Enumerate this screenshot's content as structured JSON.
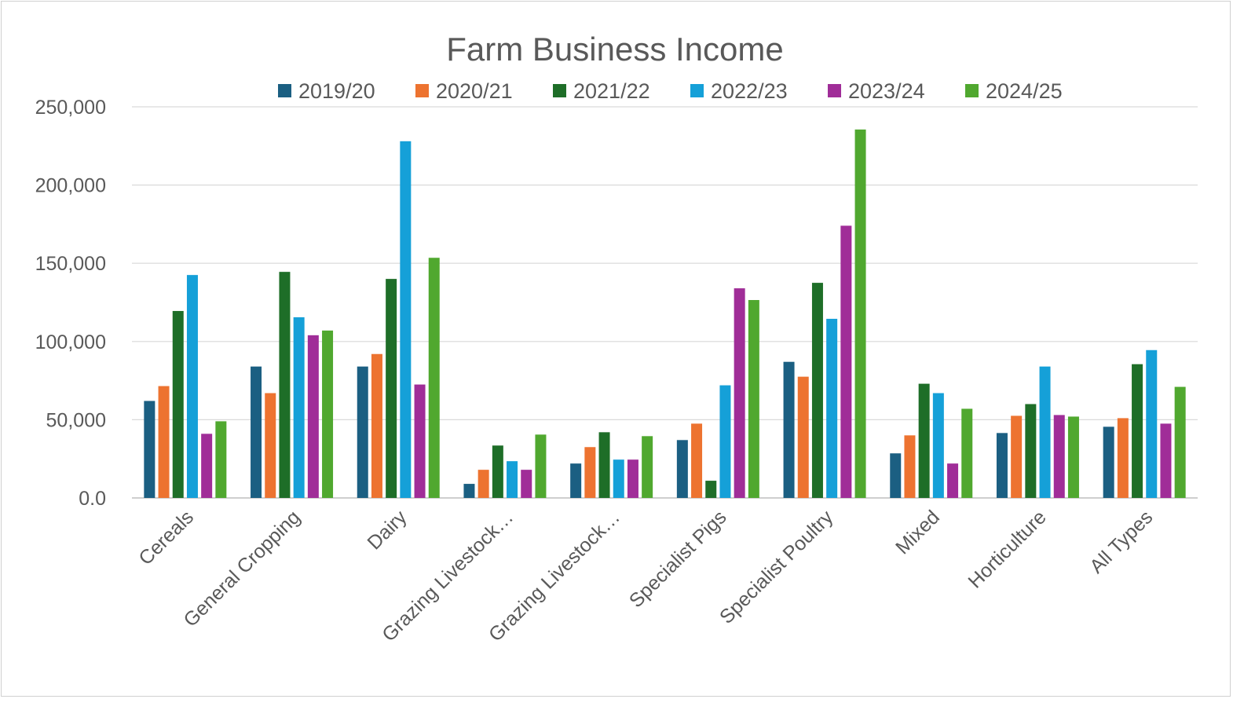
{
  "chart_data": {
    "type": "bar",
    "title": "Farm Business Income",
    "xlabel": "",
    "ylabel": "",
    "ylim": [
      0,
      250000
    ],
    "yticks": [
      "0.0",
      "50,000",
      "100,000",
      "150,000",
      "200,000",
      "250,000"
    ],
    "ytick_values": [
      0,
      50000,
      100000,
      150000,
      200000,
      250000
    ],
    "grid": true,
    "legend_position": "top",
    "categories": [
      "Cereals",
      "General Cropping",
      "Dairy",
      "Grazing Livestock…",
      "Grazing Livestock…",
      "Specialist Pigs",
      "Specialist Poultry",
      "Mixed",
      "Horticulture",
      "All Types"
    ],
    "series": [
      {
        "name": "2019/20",
        "color": "#1b5f82",
        "values": [
          62000,
          84000,
          84000,
          9000,
          22000,
          37000,
          87000,
          28500,
          41500,
          45500
        ]
      },
      {
        "name": "2020/21",
        "color": "#ed7330",
        "values": [
          71500,
          67000,
          92000,
          18000,
          32500,
          47500,
          77500,
          40000,
          52500,
          51000
        ]
      },
      {
        "name": "2021/22",
        "color": "#1e6e28",
        "values": [
          119500,
          144500,
          140000,
          33500,
          42000,
          11000,
          137500,
          73000,
          60000,
          85500
        ]
      },
      {
        "name": "2022/23",
        "color": "#15a0d8",
        "values": [
          142500,
          115500,
          228000,
          23500,
          24500,
          72000,
          114500,
          67000,
          84000,
          94500
        ]
      },
      {
        "name": "2023/24",
        "color": "#a02d98",
        "values": [
          41000,
          104000,
          72500,
          18000,
          24500,
          134000,
          174000,
          22000,
          53000,
          47500
        ]
      },
      {
        "name": "2024/25",
        "color": "#50a82f",
        "values": [
          49000,
          107000,
          153500,
          40500,
          39500,
          126500,
          235500,
          57000,
          52000,
          71000
        ]
      }
    ]
  }
}
